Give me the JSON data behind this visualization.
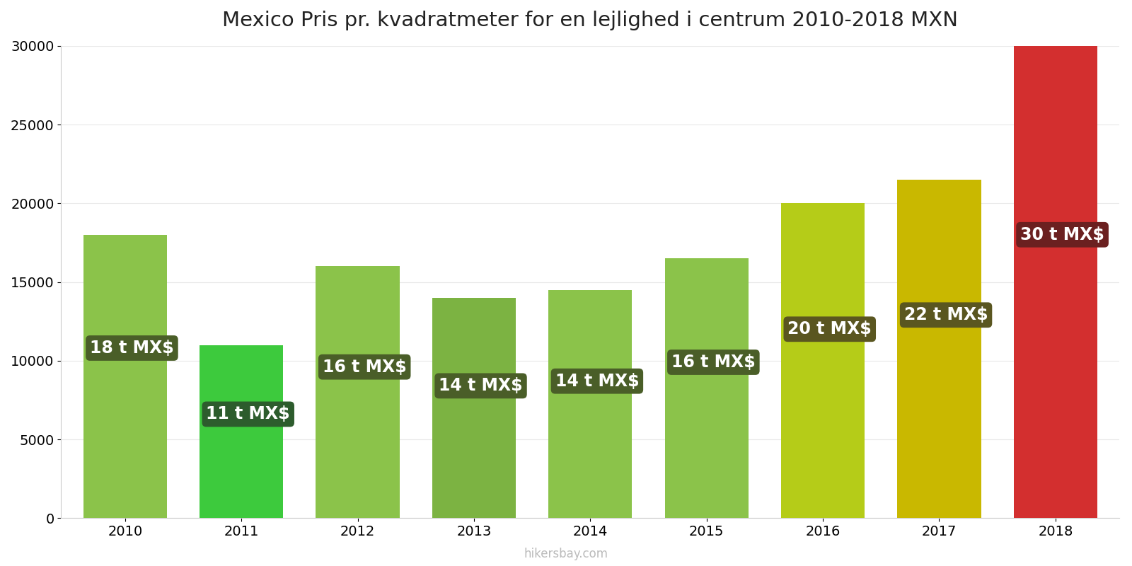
{
  "title": "Mexico Pris pr. kvadratmeter for en lejlighed i centrum 2010-2018 MXN",
  "years": [
    2010,
    2011,
    2012,
    2013,
    2014,
    2015,
    2016,
    2017,
    2018
  ],
  "values": [
    18000,
    11000,
    16000,
    14000,
    14500,
    16500,
    20000,
    21500,
    30000
  ],
  "labels": [
    "18 t MX$",
    "11 t MX$",
    "16 t MX$",
    "14 t MX$",
    "14 t MX$",
    "16 t MX$",
    "20 t MX$",
    "22 t MX$",
    "30 t MX$"
  ],
  "bar_colors": [
    "#8bc34a",
    "#3dca3d",
    "#8bc34a",
    "#7cb342",
    "#8bc34a",
    "#8bc34a",
    "#b5cc18",
    "#c9b800",
    "#d32f2f"
  ],
  "label_box_colors": [
    "#4a5e28",
    "#2d5c2d",
    "#4a5e28",
    "#4a5e28",
    "#4a5e28",
    "#4a5e28",
    "#5a5620",
    "#5a5620",
    "#6b2020"
  ],
  "ylim": [
    0,
    30000
  ],
  "yticks": [
    0,
    5000,
    10000,
    15000,
    20000,
    25000,
    30000
  ],
  "background_color": "#ffffff",
  "watermark": "hikersbay.com",
  "title_fontsize": 21,
  "label_fontsize": 17,
  "tick_fontsize": 14,
  "bar_width": 0.72
}
